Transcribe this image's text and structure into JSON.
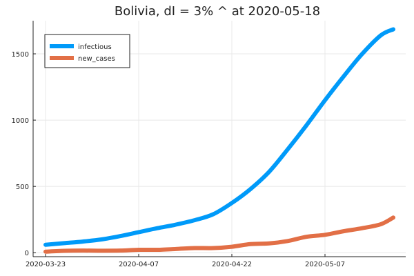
{
  "chart_data": {
    "type": "line",
    "title": "Bolivia,  dI = 3% ^ at 2020-05-18",
    "xlabel": "",
    "ylabel": "",
    "x_start": "2020-03-23",
    "x_end": "2020-05-18",
    "xlim": [
      "2020-03-21",
      "2020-05-20"
    ],
    "ylim": [
      -30,
      1750
    ],
    "grid": true,
    "legend_position": "top-left",
    "x_ticks": [
      {
        "date": "2020-03-23",
        "label": "2020-03-23"
      },
      {
        "date": "2020-04-07",
        "label": "2020-04-07"
      },
      {
        "date": "2020-04-22",
        "label": "2020-04-22"
      },
      {
        "date": "2020-05-07",
        "label": "2020-05-07"
      }
    ],
    "y_ticks": [
      0,
      500,
      1000,
      1500
    ],
    "series": [
      {
        "name": "infectious",
        "color": "#009af9",
        "points": [
          [
            "2020-03-23",
            60
          ],
          [
            "2020-03-26",
            72
          ],
          [
            "2020-03-29",
            84
          ],
          [
            "2020-04-01",
            100
          ],
          [
            "2020-04-04",
            125
          ],
          [
            "2020-04-07",
            155
          ],
          [
            "2020-04-10",
            185
          ],
          [
            "2020-04-13",
            212
          ],
          [
            "2020-04-16",
            245
          ],
          [
            "2020-04-19",
            290
          ],
          [
            "2020-04-22",
            375
          ],
          [
            "2020-04-25",
            480
          ],
          [
            "2020-04-28",
            610
          ],
          [
            "2020-05-01",
            780
          ],
          [
            "2020-05-04",
            960
          ],
          [
            "2020-05-07",
            1150
          ],
          [
            "2020-05-10",
            1330
          ],
          [
            "2020-05-13",
            1500
          ],
          [
            "2020-05-16",
            1640
          ],
          [
            "2020-05-18",
            1685
          ]
        ]
      },
      {
        "name": "new_cases",
        "color": "#e26f46",
        "points": [
          [
            "2020-03-23",
            8
          ],
          [
            "2020-03-26",
            14
          ],
          [
            "2020-03-29",
            16
          ],
          [
            "2020-04-01",
            15
          ],
          [
            "2020-04-04",
            16
          ],
          [
            "2020-04-07",
            22
          ],
          [
            "2020-04-10",
            22
          ],
          [
            "2020-04-13",
            28
          ],
          [
            "2020-04-16",
            35
          ],
          [
            "2020-04-19",
            35
          ],
          [
            "2020-04-22",
            45
          ],
          [
            "2020-04-25",
            65
          ],
          [
            "2020-04-28",
            70
          ],
          [
            "2020-05-01",
            88
          ],
          [
            "2020-05-04",
            120
          ],
          [
            "2020-05-07",
            135
          ],
          [
            "2020-05-10",
            162
          ],
          [
            "2020-05-13",
            185
          ],
          [
            "2020-05-16",
            215
          ],
          [
            "2020-05-18",
            265
          ]
        ]
      }
    ]
  }
}
